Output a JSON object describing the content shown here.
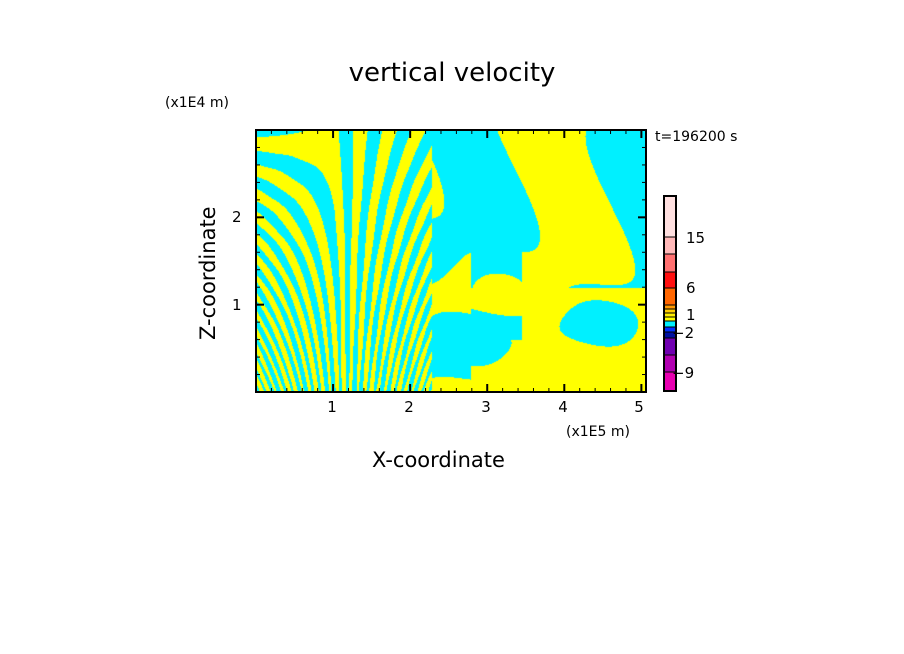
{
  "chart_data": {
    "type": "heatmap",
    "title": "vertical velocity",
    "xlabel": "X-coordinate",
    "ylabel": "Z-coordinate",
    "x_unit": "(x1E5 m)",
    "y_unit": "(x1E4 m)",
    "time_label": "t=196200 s",
    "xlim": [
      0,
      5.06
    ],
    "ylim": [
      0,
      3.0
    ],
    "x_ticks": [
      "1",
      "2",
      "3",
      "4",
      "5"
    ],
    "y_ticks": [
      "1",
      "2"
    ],
    "colorbar": {
      "labels": [
        "15",
        "6",
        "1",
        "−2",
        "−9"
      ],
      "colors_top_to_bottom": [
        "#ffe0e0",
        "#ffb8b8",
        "#ff7070",
        "#ff1010",
        "#ff6600",
        "#ff9900",
        "#ffcc00",
        "#ffee00",
        "#ffff00",
        "#00f0ff",
        "#0030ff",
        "#0010a0",
        "#7000b0",
        "#b000b0",
        "#e800b0"
      ]
    },
    "dominant_colors": {
      "positive": "#ffff00",
      "negative": "#00f0ff"
    }
  }
}
